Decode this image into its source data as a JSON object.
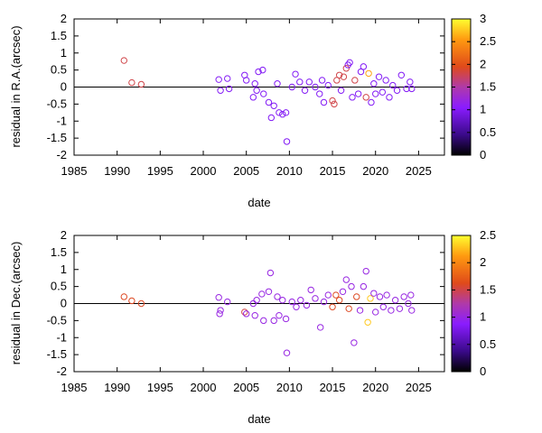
{
  "chart_data": [
    {
      "type": "scatter",
      "title": "",
      "xlabel": "date",
      "ylabel": "residual in R.A.(arcsec)",
      "xlim": [
        1985,
        2028
      ],
      "ylim": [
        -2,
        2
      ],
      "x_ticks": [
        "1985",
        "1990",
        "1995",
        "2000",
        "2005",
        "2010",
        "2015",
        "2020",
        "2025"
      ],
      "y_ticks": [
        "-2",
        "-1.5",
        "-1",
        "-0.5",
        "0",
        "0.5",
        "1",
        "1.5",
        "2"
      ],
      "colorbar": {
        "range": [
          0,
          3
        ],
        "ticks": [
          "0",
          "0.5",
          "1",
          "1.5",
          "2",
          "2.5",
          "3"
        ],
        "palette": "black-purple-red-orange-yellow"
      },
      "zero_line": true,
      "points": [
        {
          "x": 1990.8,
          "y": 0.78,
          "c": 1.8
        },
        {
          "x": 1991.7,
          "y": 0.13,
          "c": 1.8
        },
        {
          "x": 1992.8,
          "y": 0.08,
          "c": 1.8
        },
        {
          "x": 2001.8,
          "y": 0.22,
          "c": 1.0
        },
        {
          "x": 2002.0,
          "y": -0.1,
          "c": 1.0
        },
        {
          "x": 2002.8,
          "y": 0.25,
          "c": 1.0
        },
        {
          "x": 2003.0,
          "y": -0.05,
          "c": 1.0
        },
        {
          "x": 2004.8,
          "y": 0.35,
          "c": 1.0
        },
        {
          "x": 2005.0,
          "y": 0.2,
          "c": 1.0
        },
        {
          "x": 2005.8,
          "y": -0.3,
          "c": 1.0
        },
        {
          "x": 2006.0,
          "y": 0.1,
          "c": 1.0
        },
        {
          "x": 2006.2,
          "y": -0.1,
          "c": 1.0
        },
        {
          "x": 2006.4,
          "y": 0.45,
          "c": 1.0
        },
        {
          "x": 2006.9,
          "y": 0.5,
          "c": 1.0
        },
        {
          "x": 2007.0,
          "y": -0.2,
          "c": 1.0
        },
        {
          "x": 2007.6,
          "y": -0.45,
          "c": 1.0
        },
        {
          "x": 2007.9,
          "y": -0.9,
          "c": 1.0
        },
        {
          "x": 2008.2,
          "y": -0.55,
          "c": 1.0
        },
        {
          "x": 2008.6,
          "y": 0.1,
          "c": 1.0
        },
        {
          "x": 2008.8,
          "y": -0.75,
          "c": 1.0
        },
        {
          "x": 2009.2,
          "y": -0.8,
          "c": 1.0
        },
        {
          "x": 2009.6,
          "y": -0.75,
          "c": 1.0
        },
        {
          "x": 2009.7,
          "y": -1.6,
          "c": 1.0
        },
        {
          "x": 2010.3,
          "y": 0.0,
          "c": 1.0
        },
        {
          "x": 2010.7,
          "y": 0.38,
          "c": 1.0
        },
        {
          "x": 2011.2,
          "y": 0.15,
          "c": 1.0
        },
        {
          "x": 2011.8,
          "y": -0.1,
          "c": 1.0
        },
        {
          "x": 2012.3,
          "y": 0.15,
          "c": 1.0
        },
        {
          "x": 2013.0,
          "y": 0.0,
          "c": 1.0
        },
        {
          "x": 2013.5,
          "y": -0.2,
          "c": 1.0
        },
        {
          "x": 2013.8,
          "y": 0.2,
          "c": 1.0
        },
        {
          "x": 2014.0,
          "y": -0.45,
          "c": 1.0
        },
        {
          "x": 2014.5,
          "y": 0.05,
          "c": 1.0
        },
        {
          "x": 2015.0,
          "y": -0.4,
          "c": 1.8
        },
        {
          "x": 2015.2,
          "y": -0.5,
          "c": 1.8
        },
        {
          "x": 2015.5,
          "y": 0.2,
          "c": 1.8
        },
        {
          "x": 2015.8,
          "y": 0.35,
          "c": 1.8
        },
        {
          "x": 2016.0,
          "y": -0.1,
          "c": 1.0
        },
        {
          "x": 2016.3,
          "y": 0.3,
          "c": 1.8
        },
        {
          "x": 2016.6,
          "y": 0.55,
          "c": 1.8
        },
        {
          "x": 2016.8,
          "y": 0.65,
          "c": 1.0
        },
        {
          "x": 2017.0,
          "y": 0.72,
          "c": 1.0
        },
        {
          "x": 2017.3,
          "y": -0.3,
          "c": 1.0
        },
        {
          "x": 2017.6,
          "y": 0.2,
          "c": 1.8
        },
        {
          "x": 2018.0,
          "y": -0.2,
          "c": 1.0
        },
        {
          "x": 2018.3,
          "y": 0.45,
          "c": 1.0
        },
        {
          "x": 2018.6,
          "y": 0.6,
          "c": 1.0
        },
        {
          "x": 2018.9,
          "y": -0.3,
          "c": 1.8
        },
        {
          "x": 2019.2,
          "y": 0.4,
          "c": 2.6
        },
        {
          "x": 2019.5,
          "y": -0.45,
          "c": 1.0
        },
        {
          "x": 2019.8,
          "y": 0.1,
          "c": 1.0
        },
        {
          "x": 2020.0,
          "y": -0.2,
          "c": 1.0
        },
        {
          "x": 2020.4,
          "y": 0.3,
          "c": 1.0
        },
        {
          "x": 2020.8,
          "y": -0.15,
          "c": 1.0
        },
        {
          "x": 2021.2,
          "y": 0.2,
          "c": 1.0
        },
        {
          "x": 2021.6,
          "y": -0.3,
          "c": 1.0
        },
        {
          "x": 2022.0,
          "y": 0.05,
          "c": 1.0
        },
        {
          "x": 2022.5,
          "y": -0.1,
          "c": 1.0
        },
        {
          "x": 2023.0,
          "y": 0.35,
          "c": 1.0
        },
        {
          "x": 2023.6,
          "y": -0.05,
          "c": 1.0
        },
        {
          "x": 2024.0,
          "y": 0.15,
          "c": 1.0
        },
        {
          "x": 2024.2,
          "y": -0.05,
          "c": 1.0
        }
      ]
    },
    {
      "type": "scatter",
      "title": "",
      "xlabel": "date",
      "ylabel": "residual in Dec.(arcsec)",
      "xlim": [
        1985,
        2028
      ],
      "ylim": [
        -2,
        2
      ],
      "x_ticks": [
        "1985",
        "1990",
        "1995",
        "2000",
        "2005",
        "2010",
        "2015",
        "2020",
        "2025"
      ],
      "y_ticks": [
        "-2",
        "-1.5",
        "-1",
        "-0.5",
        "0",
        "0.5",
        "1",
        "1.5",
        "2"
      ],
      "colorbar": {
        "range": [
          0,
          2.5
        ],
        "ticks": [
          "0",
          "0.5",
          "1",
          "1.5",
          "2",
          "2.5"
        ],
        "palette": "black-purple-red-orange-yellow"
      },
      "zero_line": true,
      "points": [
        {
          "x": 1990.8,
          "y": 0.2,
          "c": 1.6
        },
        {
          "x": 1991.7,
          "y": 0.08,
          "c": 1.6
        },
        {
          "x": 1992.8,
          "y": 0.0,
          "c": 1.6
        },
        {
          "x": 2001.8,
          "y": 0.18,
          "c": 1.0
        },
        {
          "x": 2001.9,
          "y": -0.3,
          "c": 1.0
        },
        {
          "x": 2002.0,
          "y": -0.2,
          "c": 1.0
        },
        {
          "x": 2002.8,
          "y": 0.05,
          "c": 1.0
        },
        {
          "x": 2004.8,
          "y": -0.25,
          "c": 1.5
        },
        {
          "x": 2005.0,
          "y": -0.3,
          "c": 1.0
        },
        {
          "x": 2005.8,
          "y": 0.0,
          "c": 1.0
        },
        {
          "x": 2006.0,
          "y": -0.35,
          "c": 1.0
        },
        {
          "x": 2006.2,
          "y": 0.1,
          "c": 1.0
        },
        {
          "x": 2006.8,
          "y": 0.28,
          "c": 1.0
        },
        {
          "x": 2007.0,
          "y": -0.5,
          "c": 1.0
        },
        {
          "x": 2007.6,
          "y": 0.35,
          "c": 1.0
        },
        {
          "x": 2007.8,
          "y": 0.9,
          "c": 1.0
        },
        {
          "x": 2008.2,
          "y": -0.5,
          "c": 1.0
        },
        {
          "x": 2008.6,
          "y": 0.2,
          "c": 1.0
        },
        {
          "x": 2008.8,
          "y": -0.35,
          "c": 1.0
        },
        {
          "x": 2009.2,
          "y": 0.1,
          "c": 1.0
        },
        {
          "x": 2009.6,
          "y": -0.45,
          "c": 1.0
        },
        {
          "x": 2009.7,
          "y": -1.45,
          "c": 1.0
        },
        {
          "x": 2010.3,
          "y": 0.05,
          "c": 1.0
        },
        {
          "x": 2010.8,
          "y": -0.1,
          "c": 1.0
        },
        {
          "x": 2011.3,
          "y": 0.1,
          "c": 1.0
        },
        {
          "x": 2012.0,
          "y": -0.05,
          "c": 1.0
        },
        {
          "x": 2012.5,
          "y": 0.4,
          "c": 1.0
        },
        {
          "x": 2013.0,
          "y": 0.15,
          "c": 1.0
        },
        {
          "x": 2013.6,
          "y": -0.7,
          "c": 1.0
        },
        {
          "x": 2014.0,
          "y": 0.05,
          "c": 1.0
        },
        {
          "x": 2014.5,
          "y": 0.25,
          "c": 1.0
        },
        {
          "x": 2015.0,
          "y": -0.1,
          "c": 1.6
        },
        {
          "x": 2015.4,
          "y": 0.25,
          "c": 1.6
        },
        {
          "x": 2015.8,
          "y": 0.1,
          "c": 1.6
        },
        {
          "x": 2016.2,
          "y": 0.35,
          "c": 1.0
        },
        {
          "x": 2016.6,
          "y": 0.7,
          "c": 1.0
        },
        {
          "x": 2016.9,
          "y": -0.15,
          "c": 1.6
        },
        {
          "x": 2017.2,
          "y": 0.5,
          "c": 1.0
        },
        {
          "x": 2017.5,
          "y": -1.15,
          "c": 1.0
        },
        {
          "x": 2017.8,
          "y": 0.2,
          "c": 1.6
        },
        {
          "x": 2018.2,
          "y": -0.2,
          "c": 1.0
        },
        {
          "x": 2018.6,
          "y": 0.5,
          "c": 1.0
        },
        {
          "x": 2018.9,
          "y": 0.95,
          "c": 1.0
        },
        {
          "x": 2019.1,
          "y": -0.55,
          "c": 2.3
        },
        {
          "x": 2019.4,
          "y": 0.15,
          "c": 2.3
        },
        {
          "x": 2019.8,
          "y": 0.3,
          "c": 1.0
        },
        {
          "x": 2020.0,
          "y": -0.25,
          "c": 1.0
        },
        {
          "x": 2020.5,
          "y": 0.2,
          "c": 1.0
        },
        {
          "x": 2020.9,
          "y": -0.1,
          "c": 1.0
        },
        {
          "x": 2021.3,
          "y": 0.25,
          "c": 1.0
        },
        {
          "x": 2021.8,
          "y": -0.2,
          "c": 1.0
        },
        {
          "x": 2022.3,
          "y": 0.1,
          "c": 1.0
        },
        {
          "x": 2022.8,
          "y": -0.15,
          "c": 1.0
        },
        {
          "x": 2023.3,
          "y": 0.2,
          "c": 1.0
        },
        {
          "x": 2023.8,
          "y": 0.0,
          "c": 1.0
        },
        {
          "x": 2024.1,
          "y": 0.25,
          "c": 1.0
        },
        {
          "x": 2024.2,
          "y": -0.2,
          "c": 1.0
        }
      ]
    }
  ]
}
